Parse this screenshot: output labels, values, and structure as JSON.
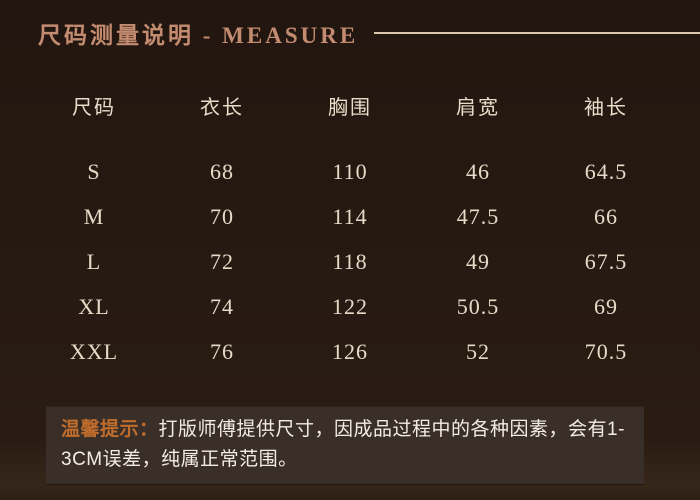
{
  "header": {
    "title": "尺码测量说明 - MEASURE"
  },
  "table": {
    "columns": [
      "尺码",
      "衣长",
      "胸围",
      "肩宽",
      "袖长"
    ],
    "rows": [
      [
        "S",
        "68",
        "110",
        "46",
        "64.5"
      ],
      [
        "M",
        "70",
        "114",
        "47.5",
        "66"
      ],
      [
        "L",
        "72",
        "118",
        "49",
        "67.5"
      ],
      [
        "XL",
        "74",
        "122",
        "50.5",
        "69"
      ],
      [
        "XXL",
        "76",
        "126",
        "52",
        "70.5"
      ]
    ]
  },
  "note": {
    "label": "温馨提示：",
    "text": "打版师傅提供尺寸，因成品过程中的各种因素，会有1-3CM误差，纯属正常范围。"
  },
  "colors": {
    "background": "#271a12",
    "title_text": "#c38b6f",
    "header_rule": "#d9c7a9",
    "table_text": "#e6dbc7",
    "note_background": "#3a2f28",
    "note_label": "#bf6c2c",
    "note_text": "#f1ece4"
  }
}
